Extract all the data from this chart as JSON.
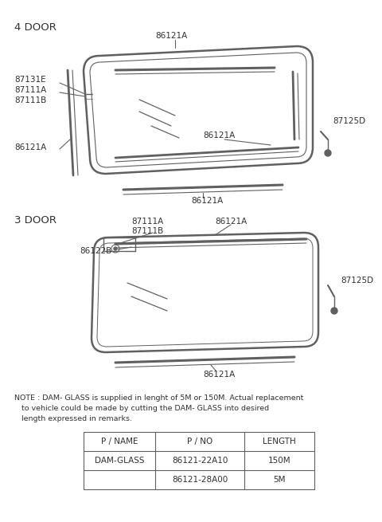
{
  "bg_color": "#ffffff",
  "line_color": "#606060",
  "text_color": "#303030",
  "title_4door": "4 DOOR",
  "title_3door": "3 DOOR",
  "note_line1": "NOTE : DAM- GLASS is supplied in lenght of 5M or 150M. Actual replacement",
  "note_line2": "   to vehicle could be made by cutting the DAM- GLASS into desired",
  "note_line3": "   length expressed in remarks.",
  "table_headers": [
    "P / NAME",
    "P / NO",
    "LENGTH"
  ],
  "table_row1_name": "DAM-GLASS",
  "table_row1_pno": "86121-22A10",
  "table_row1_len": "150M",
  "table_row2_pno": "86121-28A00",
  "table_row2_len": "5M"
}
